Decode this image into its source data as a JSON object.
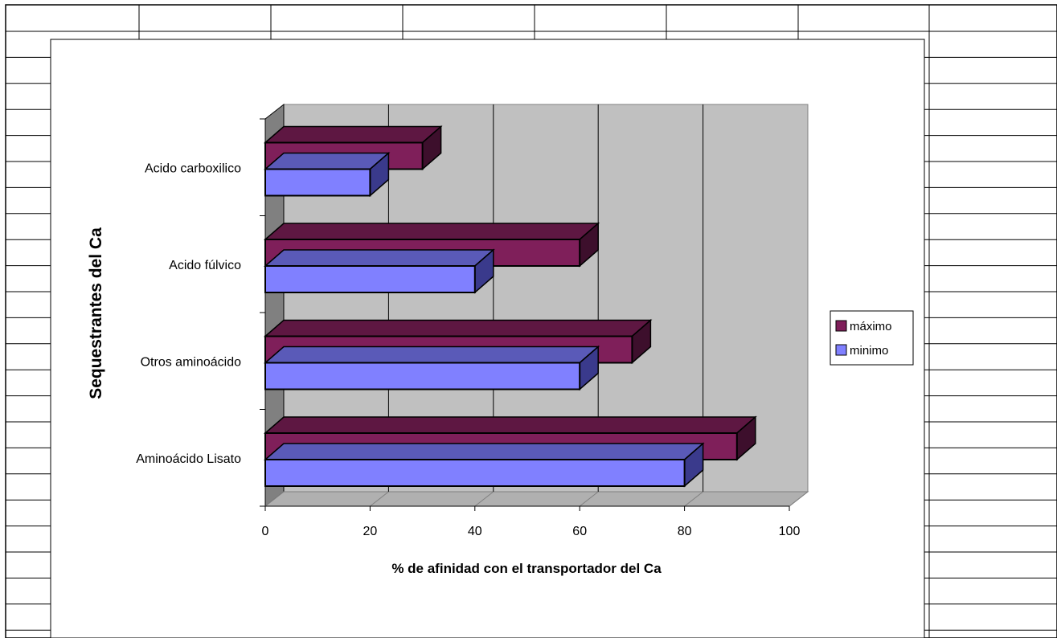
{
  "chart_data": {
    "type": "bar",
    "orientation": "horizontal",
    "style": "3d",
    "categories": [
      "Aminoácido Lisato",
      "Otros aminoácido",
      "Acido fúlvico",
      "Acido carboxilico"
    ],
    "series": [
      {
        "name": "máximo",
        "values": [
          90,
          70,
          60,
          30
        ],
        "color": "#7f1f5a",
        "side_color": "#3d0f2c",
        "top_color": "#5e1742"
      },
      {
        "name": "minimo",
        "values": [
          80,
          60,
          40,
          20
        ],
        "color": "#8080ff",
        "side_color": "#3a3a8c",
        "top_color": "#5a5ab8"
      }
    ],
    "xlabel": "% de afinidad con el transportador del Ca",
    "ylabel": "Sequestrantes del Ca",
    "xlim": [
      0,
      100
    ],
    "xticks": [
      0,
      20,
      40,
      60,
      80,
      100
    ],
    "grid": true,
    "legend_position": "right",
    "wall_color": "#c0c0c0",
    "side_wall_color": "#808080"
  }
}
